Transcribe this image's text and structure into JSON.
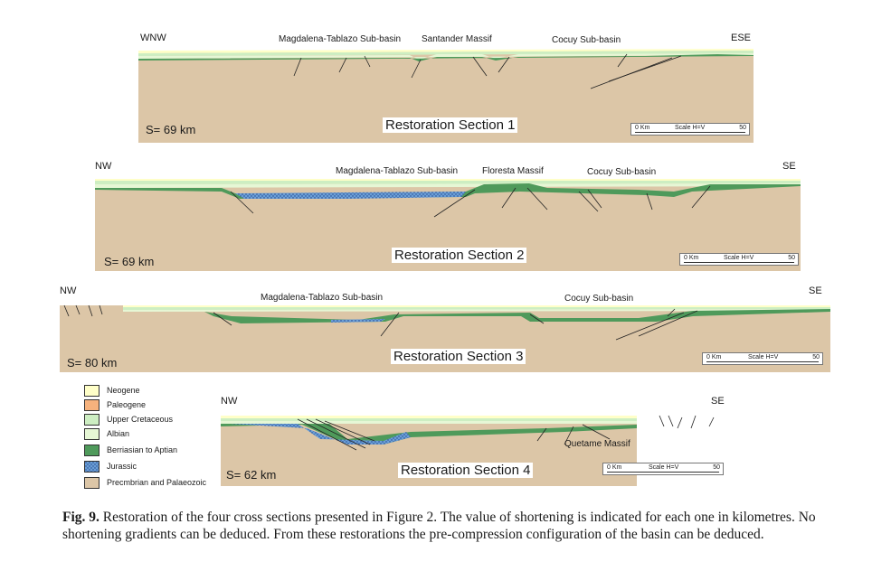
{
  "colors": {
    "neogene": "#ffffc8",
    "paleogene": "#f6b27d",
    "upper_cretaceous": "#cdeec2",
    "albian": "#e6f7d5",
    "berriasian_aptian": "#4f9a5b",
    "jurassic": "#6a9fd6",
    "basement": "#dcc6a7"
  },
  "sections": [
    {
      "left_dir": "WNW",
      "right_dir": "ESE",
      "labels": [
        "Magdalena-Tablazo Sub-basin",
        "Santander Massif",
        "Cocuy Sub-basin"
      ],
      "shortening": "S= 69 km",
      "title": "Restoration Section 1",
      "scale": {
        "zero": "0 Km",
        "label": "Scale H=V",
        "max": "50"
      }
    },
    {
      "left_dir": "NW",
      "right_dir": "SE",
      "labels": [
        "Magdalena-Tablazo Sub-basin",
        "Floresta Massif",
        "Cocuy Sub-basin"
      ],
      "shortening": "S= 69 km",
      "title": "Restoration Section 2",
      "scale": {
        "zero": "0 Km",
        "label": "Scale H=V",
        "max": "50"
      }
    },
    {
      "left_dir": "NW",
      "right_dir": "SE",
      "labels": [
        "Magdalena-Tablazo Sub-basin",
        "Cocuy Sub-basin"
      ],
      "shortening": "S= 80 km",
      "title": "Restoration Section 3",
      "scale": {
        "zero": "0 Km",
        "label": "Scale H=V",
        "max": "50"
      }
    },
    {
      "left_dir": "NW",
      "right_dir": "SE",
      "labels": [
        "Quetame Massif"
      ],
      "shortening": "S= 62 km",
      "title": "Restoration Section 4",
      "scale": {
        "zero": "0 Km",
        "label": "Scale H=V",
        "max": "50"
      }
    }
  ],
  "legend": [
    {
      "label": "Neogene",
      "key": "neogene"
    },
    {
      "label": "Paleogene",
      "key": "paleogene"
    },
    {
      "label": "Upper Cretaceous",
      "key": "upper_cretaceous"
    },
    {
      "label": "Albian",
      "key": "albian"
    },
    {
      "label": "Berriasian to Aptian",
      "key": "berriasian_aptian"
    },
    {
      "label": "Jurassic",
      "key": "jurassic"
    },
    {
      "label": "Precmbrian and Palaeozoic",
      "key": "basement"
    }
  ],
  "caption": {
    "prefix": "Fig. 9.",
    "text": "Restoration of the four cross sections presented in Figure 2. The value of shortening is indicated for each one in kilometres. No shortening gradients can be deduced. From these restorations the pre-compression configuration of the basin can be deduced."
  }
}
